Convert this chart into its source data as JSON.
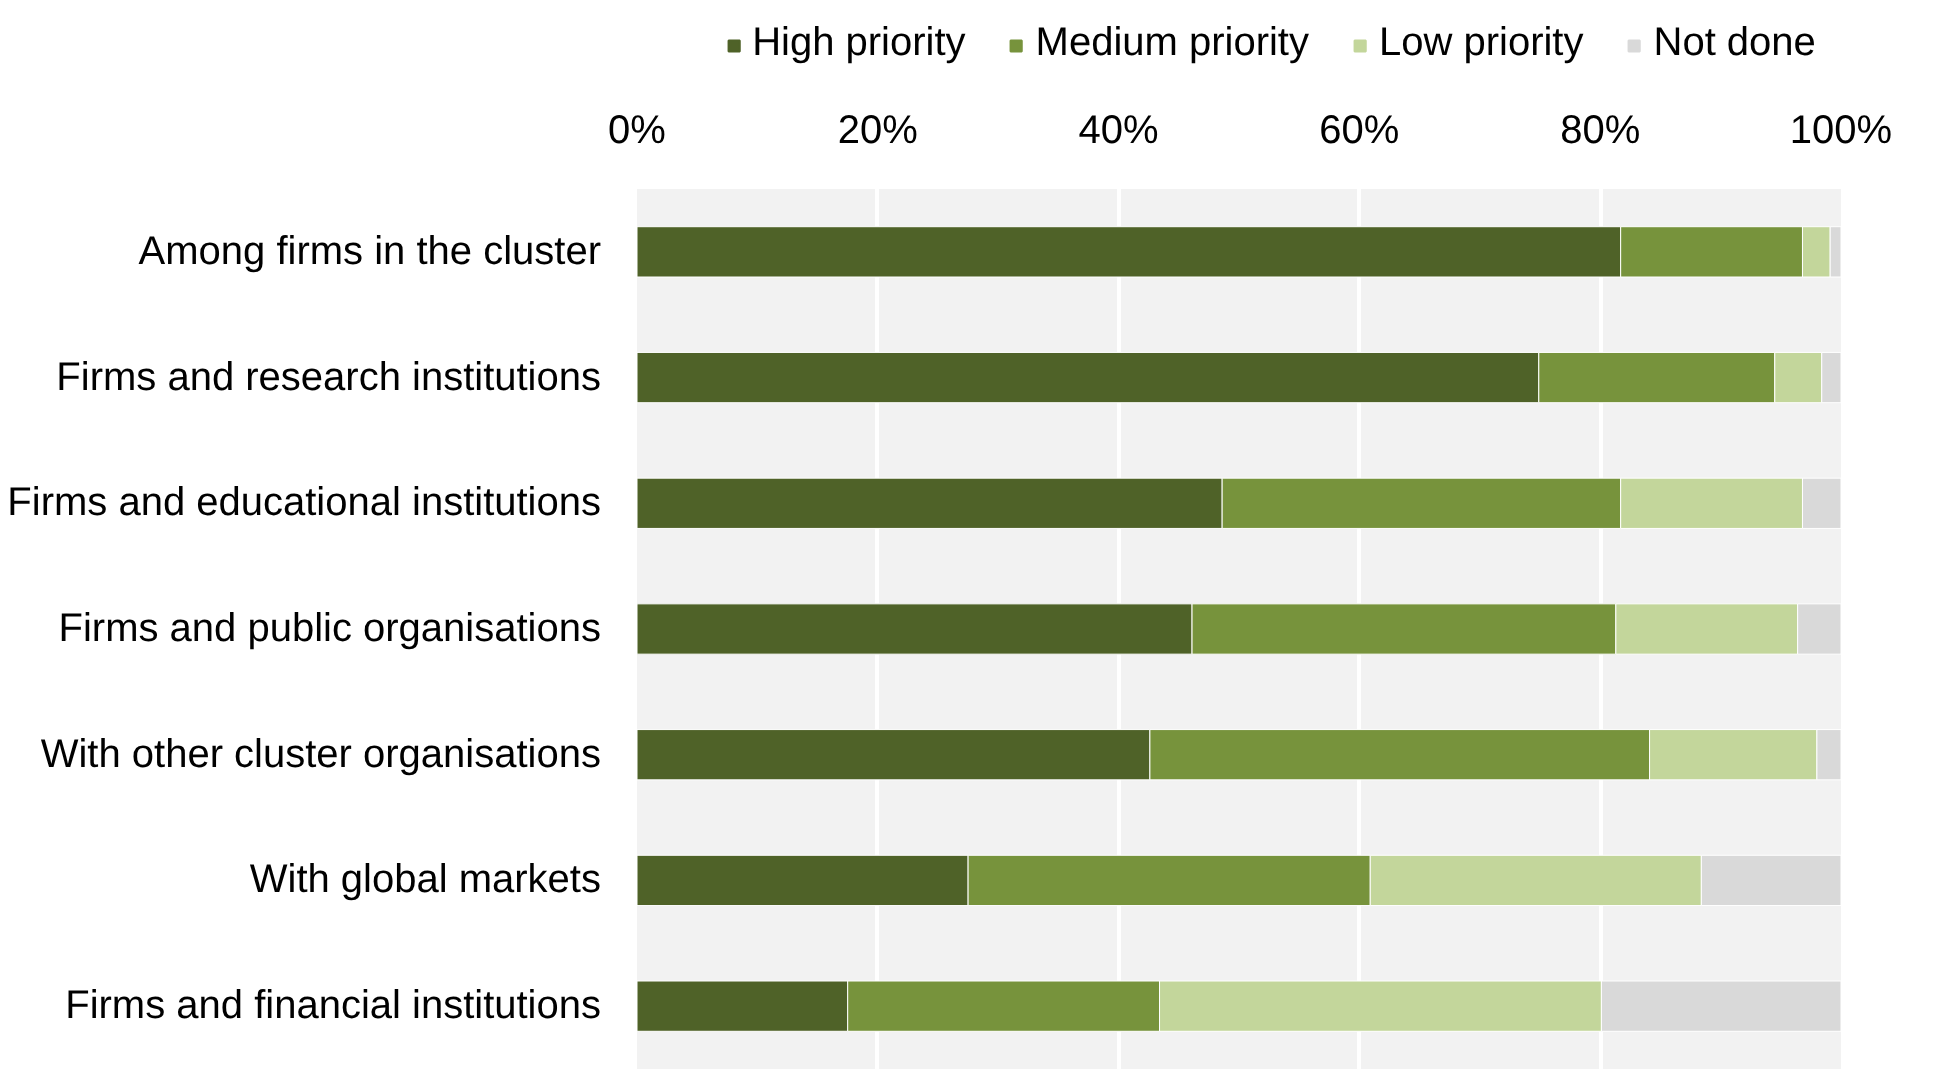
{
  "chart_data": {
    "type": "bar",
    "orientation": "horizontal",
    "stacked": true,
    "categories": [
      "Among firms in the cluster",
      "Firms and research institutions",
      "Firms and educational institutions",
      "Firms and public organisations",
      "With other cluster organisations",
      "With global markets",
      "Firms and financial institutions"
    ],
    "series": [
      {
        "name": "High priority",
        "color": "#4f6228",
        "values": [
          81.7,
          74.9,
          48.6,
          46.1,
          42.6,
          27.5,
          17.5
        ]
      },
      {
        "name": "Medium priority",
        "color": "#77933c",
        "values": [
          15.1,
          19.6,
          33.1,
          35.2,
          41.5,
          33.4,
          25.9
        ]
      },
      {
        "name": "Low priority",
        "color": "#c3d69b",
        "values": [
          2.3,
          3.9,
          15.1,
          15.1,
          13.9,
          27.5,
          36.7
        ]
      },
      {
        "name": "Not done",
        "color": "#d9d9d9",
        "values": [
          0.9,
          1.6,
          3.2,
          3.6,
          2.0,
          11.6,
          19.9
        ]
      }
    ],
    "xlim": [
      0,
      100
    ],
    "xticks": [
      {
        "value": 0,
        "label": "0%"
      },
      {
        "value": 20,
        "label": "20%"
      },
      {
        "value": 40,
        "label": "40%"
      },
      {
        "value": 60,
        "label": "60%"
      },
      {
        "value": 80,
        "label": "80%"
      },
      {
        "value": 100,
        "label": "100%"
      }
    ],
    "grid": "x",
    "legend": "top"
  }
}
